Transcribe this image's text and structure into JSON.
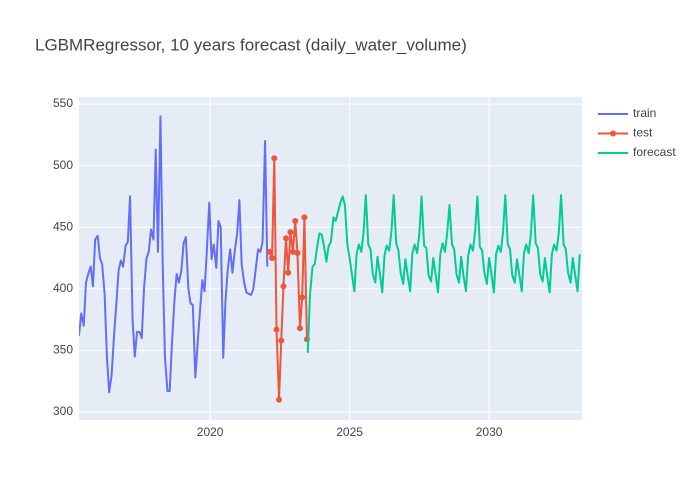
{
  "chart_data": {
    "type": "line",
    "title": "LGBMRegressor, 10 years forecast (daily_water_volume)",
    "xlim": [
      2015.3,
      2033.33
    ],
    "xticks": [
      2020,
      2025,
      2030
    ],
    "ylim": [
      293.5,
      555.7
    ],
    "yticks": [
      300,
      350,
      400,
      450,
      500,
      550
    ],
    "grid": true,
    "legend": "right",
    "series": [
      {
        "name": "train",
        "color": "#636efa",
        "markers": false,
        "x": [
          2015.3,
          2015.38,
          2015.47,
          2015.55,
          2015.63,
          2015.72,
          2015.8,
          2015.88,
          2015.97,
          2016.05,
          2016.13,
          2016.22,
          2016.3,
          2016.38,
          2016.47,
          2016.55,
          2016.63,
          2016.72,
          2016.8,
          2016.88,
          2016.97,
          2017.05,
          2017.13,
          2017.22,
          2017.3,
          2017.38,
          2017.47,
          2017.55,
          2017.63,
          2017.72,
          2017.8,
          2017.88,
          2017.97,
          2018.05,
          2018.13,
          2018.22,
          2018.3,
          2018.38,
          2018.47,
          2018.55,
          2018.63,
          2018.72,
          2018.8,
          2018.88,
          2018.97,
          2019.05,
          2019.13,
          2019.22,
          2019.3,
          2019.38,
          2019.47,
          2019.55,
          2019.63,
          2019.72,
          2019.8,
          2019.88,
          2019.97,
          2020.05,
          2020.13,
          2020.22,
          2020.3,
          2020.38,
          2020.47,
          2020.55,
          2020.63,
          2020.72,
          2020.8,
          2020.88,
          2020.97,
          2021.05,
          2021.13,
          2021.22,
          2021.3,
          2021.38,
          2021.47,
          2021.55,
          2021.63,
          2021.72,
          2021.8,
          2021.88,
          2021.97,
          2022.05
        ],
        "values": [
          362,
          380,
          370,
          405,
          412,
          418,
          402,
          440,
          443,
          425,
          420,
          395,
          345,
          316,
          330,
          360,
          385,
          415,
          423,
          418,
          435,
          438,
          475,
          375,
          345,
          365,
          365,
          360,
          400,
          425,
          430,
          448,
          440,
          513,
          430,
          540,
          420,
          345,
          317,
          317,
          355,
          390,
          412,
          405,
          415,
          437,
          442,
          400,
          388,
          387,
          328,
          355,
          380,
          407,
          398,
          430,
          470,
          424,
          436,
          417,
          455,
          450,
          344,
          390,
          415,
          432,
          413,
          430,
          445,
          472,
          420,
          405,
          397,
          396,
          395,
          400,
          415,
          432,
          430,
          438,
          520,
          418
        ]
      },
      {
        "name": "test",
        "color": "#EF553B",
        "markers": true,
        "x": [
          2022.13,
          2022.22,
          2022.3,
          2022.38,
          2022.47,
          2022.55,
          2022.63,
          2022.72,
          2022.8,
          2022.88,
          2022.97,
          2023.05,
          2023.13,
          2023.22,
          2023.3,
          2023.38,
          2023.47
        ],
        "values": [
          430,
          425,
          506,
          367,
          310,
          358,
          402,
          441,
          413,
          446,
          430,
          455,
          429,
          368,
          393,
          458,
          359
        ]
      },
      {
        "name": "forecast",
        "color": "#00cc96",
        "markers": false,
        "x": [
          2023.5,
          2023.58,
          2023.67,
          2023.75,
          2023.83,
          2023.92,
          2024,
          2024.08,
          2024.17,
          2024.25,
          2024.33,
          2024.42,
          2024.5,
          2024.58,
          2024.67,
          2024.75,
          2024.83,
          2024.92,
          2025,
          2025.08,
          2025.17,
          2025.25,
          2025.33,
          2025.42,
          2025.5,
          2025.58,
          2025.67,
          2025.75,
          2025.83,
          2025.92,
          2026,
          2026.08,
          2026.17,
          2026.25,
          2026.33,
          2026.42,
          2026.5,
          2026.58,
          2026.67,
          2026.75,
          2026.83,
          2026.92,
          2027,
          2027.08,
          2027.17,
          2027.25,
          2027.33,
          2027.42,
          2027.5,
          2027.58,
          2027.67,
          2027.75,
          2027.83,
          2027.92,
          2028,
          2028.08,
          2028.17,
          2028.25,
          2028.33,
          2028.42,
          2028.5,
          2028.58,
          2028.67,
          2028.75,
          2028.83,
          2028.92,
          2029,
          2029.08,
          2029.17,
          2029.25,
          2029.33,
          2029.42,
          2029.5,
          2029.58,
          2029.67,
          2029.75,
          2029.83,
          2029.92,
          2030,
          2030.08,
          2030.17,
          2030.25,
          2030.33,
          2030.42,
          2030.5,
          2030.58,
          2030.67,
          2030.75,
          2030.83,
          2030.92,
          2031,
          2031.08,
          2031.17,
          2031.25,
          2031.33,
          2031.42,
          2031.5,
          2031.58,
          2031.67,
          2031.75,
          2031.83,
          2031.92,
          2032,
          2032.08,
          2032.17,
          2032.25,
          2032.33,
          2032.42,
          2032.5,
          2032.58,
          2032.67,
          2032.75,
          2032.83,
          2032.92,
          2033,
          2033.08,
          2033.17,
          2033.25
        ],
        "values": [
          348,
          395,
          418,
          420,
          433,
          445,
          444,
          435,
          422,
          435,
          438,
          458,
          455,
          462,
          470,
          475,
          468,
          436,
          425,
          412,
          398,
          428,
          436,
          430,
          446,
          476,
          436,
          432,
          412,
          405,
          426,
          413,
          397,
          427,
          435,
          431,
          447,
          476,
          437,
          431,
          413,
          404,
          424,
          411,
          398,
          429,
          436,
          429,
          445,
          475,
          435,
          433,
          411,
          406,
          425,
          412,
          397,
          428,
          437,
          430,
          446,
          468,
          436,
          432,
          412,
          405,
          426,
          411,
          398,
          427,
          436,
          431,
          447,
          475,
          434,
          431,
          413,
          404,
          425,
          413,
          397,
          428,
          435,
          430,
          446,
          476,
          436,
          432,
          411,
          405,
          424,
          412,
          398,
          429,
          436,
          429,
          445,
          476,
          437,
          433,
          412,
          406,
          425,
          411,
          397,
          428,
          436,
          431,
          446,
          476,
          436,
          432,
          413,
          405,
          425,
          412,
          398,
          428
        ]
      }
    ]
  }
}
